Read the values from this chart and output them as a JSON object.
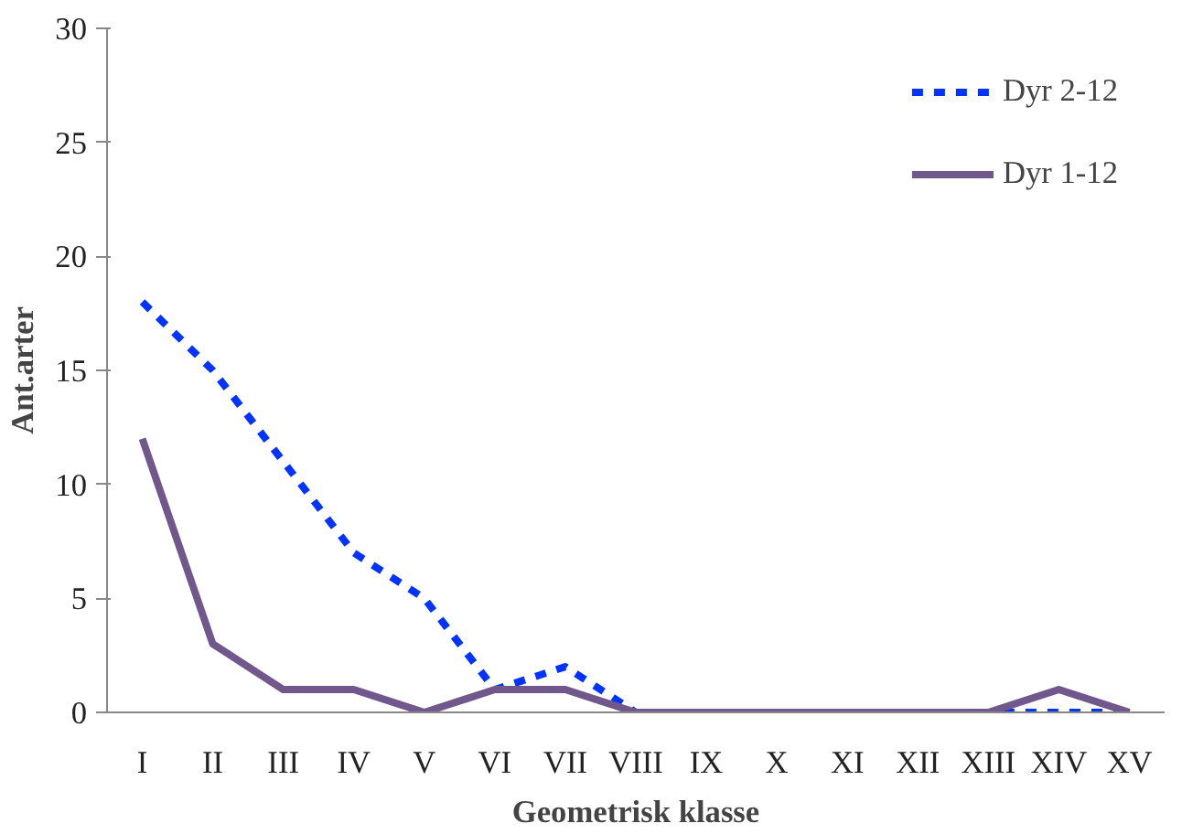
{
  "chart_data": {
    "type": "line",
    "xlabel": "Geometrisk klasse",
    "ylabel": "Ant.arter",
    "categories": [
      "I",
      "II",
      "III",
      "IV",
      "V",
      "VI",
      "VII",
      "VIII",
      "IX",
      "X",
      "XI",
      "XII",
      "XIII",
      "XIV",
      "XV"
    ],
    "series": [
      {
        "name": "Dyr 2-12",
        "color": "#0033ff",
        "line_style": "dashed",
        "values": [
          18,
          15,
          11,
          7,
          5,
          1,
          2,
          0,
          0,
          0,
          0,
          0,
          0,
          0,
          0
        ]
      },
      {
        "name": "Dyr 1-12",
        "color": "#70588c",
        "line_style": "solid",
        "values": [
          12,
          3,
          1,
          1,
          0,
          1,
          1,
          0,
          0,
          0,
          0,
          0,
          0,
          1,
          0
        ]
      }
    ],
    "ylim": [
      0,
      30
    ],
    "yticks": [
      0,
      5,
      10,
      15,
      20,
      25,
      30
    ],
    "grid": false,
    "legend": "top right",
    "marker": "none"
  }
}
